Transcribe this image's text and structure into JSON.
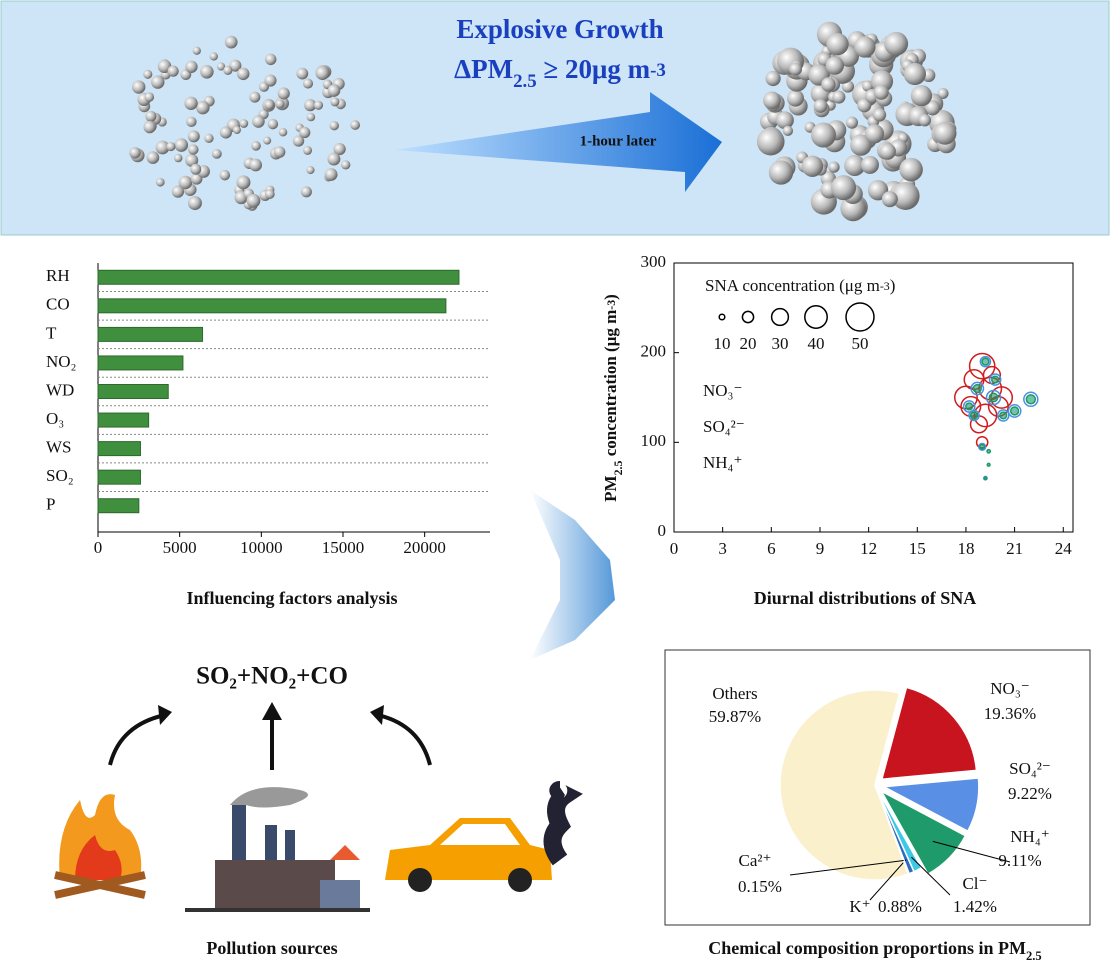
{
  "banner": {
    "title": "Explosive Growth",
    "condition": [
      "ΔPM",
      "2.5",
      " ≥ 20μg m",
      "-3"
    ],
    "arrow_label": "1-hour later"
  },
  "chart_data": [
    {
      "type": "bar",
      "orientation": "horizontal",
      "caption": "Influencing factors analysis",
      "categories": [
        "RH",
        "CO",
        "T",
        "NO₂",
        "WD",
        "O₃",
        "WS",
        "SO₂",
        "P"
      ],
      "values": [
        22100,
        21300,
        6400,
        5200,
        4300,
        3100,
        2600,
        2600,
        2500
      ],
      "color": "#3f8f3f",
      "xlim": [
        0,
        24000
      ],
      "xticks": [
        0,
        5000,
        10000,
        15000,
        20000
      ]
    },
    {
      "type": "scatter",
      "caption": "Diurnal distributions of SNA",
      "y_label": [
        "PM",
        "2.5",
        " concentration (μg m",
        "-3",
        ")"
      ],
      "xlim": [
        0,
        24.6
      ],
      "xticks": [
        0,
        3,
        6,
        9,
        12,
        15,
        18,
        21,
        24
      ],
      "ylim": [
        0,
        300
      ],
      "yticks": [
        0,
        100,
        200,
        300
      ],
      "size_legend": {
        "title": [
          "SNA concentration (μg m",
          "-3",
          ")"
        ],
        "sizes": [
          10,
          20,
          30,
          40,
          50
        ]
      },
      "series": [
        {
          "name": "NO₃⁻",
          "color": "#d01c1c",
          "x": [
            18,
            18.5,
            19,
            19.5,
            20,
            18.8,
            19.2,
            20.2,
            19,
            18.3,
            19.6
          ],
          "y": [
            150,
            170,
            185,
            160,
            140,
            120,
            130,
            150,
            100,
            140,
            175
          ],
          "size": [
            40,
            35,
            45,
            40,
            35,
            30,
            40,
            38,
            20,
            35,
            30
          ]
        },
        {
          "name": "SO₄²⁻",
          "color": "#4a90e2",
          "x": [
            18.2,
            18.7,
            19.2,
            19.7,
            20.3,
            21,
            22,
            19,
            18.5,
            19.8,
            19.2
          ],
          "y": [
            140,
            160,
            190,
            150,
            130,
            135,
            148,
            95,
            130,
            170,
            60
          ],
          "size": [
            20,
            22,
            18,
            25,
            20,
            22,
            25,
            12,
            18,
            20,
            6
          ]
        },
        {
          "name": "NH₄⁺",
          "color": "#1a9a6a",
          "x": [
            18.2,
            18.7,
            19.2,
            19.7,
            20.3,
            21,
            22,
            19,
            18.5,
            19.8,
            19.2,
            19.4,
            19.4
          ],
          "y": [
            140,
            160,
            190,
            150,
            130,
            135,
            148,
            95,
            130,
            170,
            60,
            90,
            75
          ],
          "size": [
            12,
            14,
            12,
            15,
            12,
            14,
            16,
            8,
            12,
            12,
            4,
            6,
            5
          ]
        }
      ]
    },
    {
      "type": "pie",
      "caption": [
        "Chemical composition proportions in PM",
        "2.5"
      ],
      "categories": [
        "Others",
        "NO₃⁻",
        "SO₄²⁻",
        "NH₄⁺",
        "Cl⁻",
        "K⁺",
        "Ca²⁺"
      ],
      "values": [
        59.87,
        19.36,
        9.22,
        9.11,
        1.42,
        0.88,
        0.15
      ],
      "value_labels": [
        "59.87%",
        "19.36%",
        "9.22%",
        "9.11%",
        "1.42%",
        "0.88%",
        "0.15%"
      ],
      "colors": [
        "#fbf0cc",
        "#c8141e",
        "#5a8fe6",
        "#1f9a6a",
        "#3cc8e6",
        "#2a6ec0",
        "#e0a050"
      ],
      "exploded": [
        false,
        true,
        true,
        true,
        false,
        false,
        false
      ]
    }
  ],
  "sources": {
    "equation": "SO₂+NO₂+CO",
    "caption": "Pollution sources"
  }
}
